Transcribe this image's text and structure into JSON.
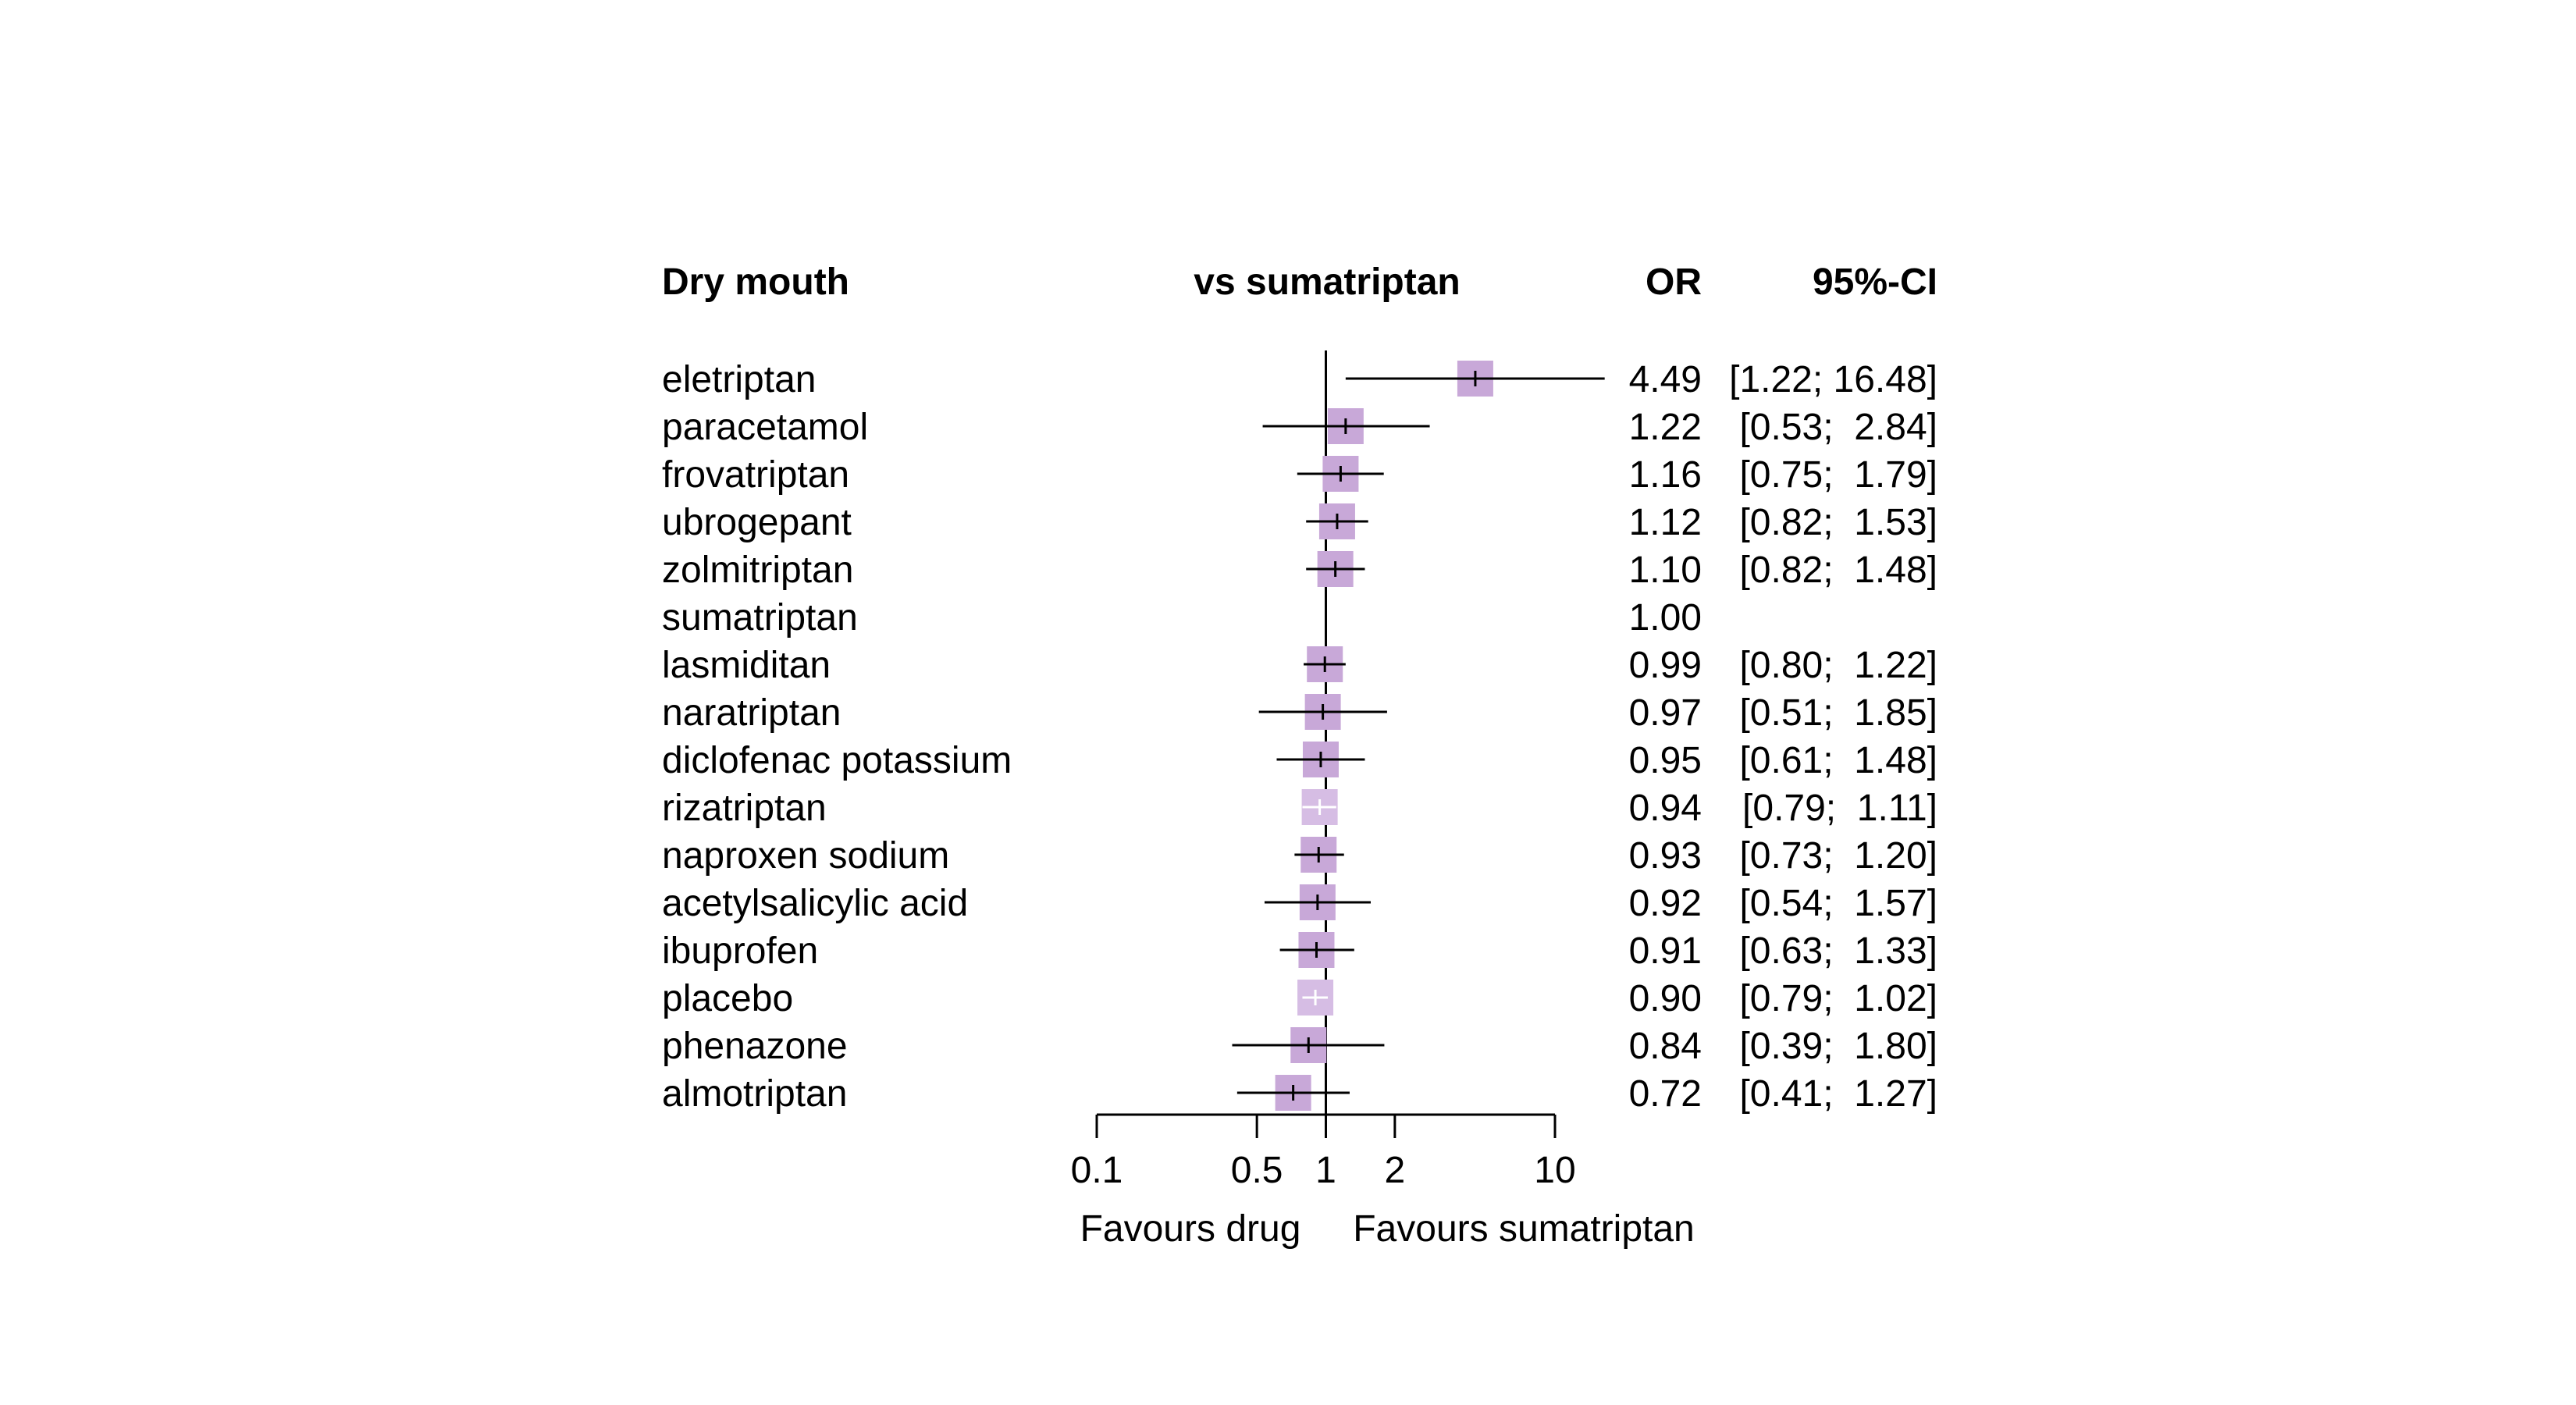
{
  "chart_data": {
    "type": "forest",
    "title": "Dry mouth",
    "comparison_header": "vs sumatriptan",
    "or_header": "OR",
    "ci_header": "95%-CI",
    "xscale": "log",
    "xlim": [
      0.1,
      10
    ],
    "reference": 1,
    "ticks": [
      0.1,
      0.5,
      1,
      2,
      10
    ],
    "tick_labels": [
      "0.1",
      "0.5",
      "1",
      "2",
      "10"
    ],
    "left_label": "Favours drug",
    "right_label": "Favours sumatriptan",
    "colors": {
      "box": "#c8a8d8",
      "box_light": "#d6bde4",
      "line": "#000000"
    },
    "rows": [
      {
        "name": "eletriptan",
        "or": 4.49,
        "lo": 1.22,
        "hi": 16.48,
        "or_text": "4.49",
        "ci_text": "[1.22; 16.48]"
      },
      {
        "name": "paracetamol",
        "or": 1.22,
        "lo": 0.53,
        "hi": 2.84,
        "or_text": "1.22",
        "ci_text": "[0.53;  2.84]"
      },
      {
        "name": "frovatriptan",
        "or": 1.16,
        "lo": 0.75,
        "hi": 1.79,
        "or_text": "1.16",
        "ci_text": "[0.75;  1.79]"
      },
      {
        "name": "ubrogepant",
        "or": 1.12,
        "lo": 0.82,
        "hi": 1.53,
        "or_text": "1.12",
        "ci_text": "[0.82;  1.53]"
      },
      {
        "name": "zolmitriptan",
        "or": 1.1,
        "lo": 0.82,
        "hi": 1.48,
        "or_text": "1.10",
        "ci_text": "[0.82;  1.48]"
      },
      {
        "name": "sumatriptan",
        "or": 1.0,
        "lo": null,
        "hi": null,
        "or_text": "1.00",
        "ci_text": ""
      },
      {
        "name": "lasmiditan",
        "or": 0.99,
        "lo": 0.8,
        "hi": 1.22,
        "or_text": "0.99",
        "ci_text": "[0.80;  1.22]"
      },
      {
        "name": "naratriptan",
        "or": 0.97,
        "lo": 0.51,
        "hi": 1.85,
        "or_text": "0.97",
        "ci_text": "[0.51;  1.85]"
      },
      {
        "name": "diclofenac potassium",
        "or": 0.95,
        "lo": 0.61,
        "hi": 1.48,
        "or_text": "0.95",
        "ci_text": "[0.61;  1.48]"
      },
      {
        "name": "rizatriptan",
        "or": 0.94,
        "lo": 0.79,
        "hi": 1.11,
        "or_text": "0.94",
        "ci_text": "[0.79;  1.11]"
      },
      {
        "name": "naproxen sodium",
        "or": 0.93,
        "lo": 0.73,
        "hi": 1.2,
        "or_text": "0.93",
        "ci_text": "[0.73;  1.20]"
      },
      {
        "name": "acetylsalicylic acid",
        "or": 0.92,
        "lo": 0.54,
        "hi": 1.57,
        "or_text": "0.92",
        "ci_text": "[0.54;  1.57]"
      },
      {
        "name": "ibuprofen",
        "or": 0.91,
        "lo": 0.63,
        "hi": 1.33,
        "or_text": "0.91",
        "ci_text": "[0.63;  1.33]"
      },
      {
        "name": "placebo",
        "or": 0.9,
        "lo": 0.79,
        "hi": 1.02,
        "or_text": "0.90",
        "ci_text": "[0.79;  1.02]"
      },
      {
        "name": "phenazone",
        "or": 0.84,
        "lo": 0.39,
        "hi": 1.8,
        "or_text": "0.84",
        "ci_text": "[0.39;  1.80]"
      },
      {
        "name": "almotriptan",
        "or": 0.72,
        "lo": 0.41,
        "hi": 1.27,
        "or_text": "0.72",
        "ci_text": "[0.41;  1.27]"
      }
    ]
  }
}
